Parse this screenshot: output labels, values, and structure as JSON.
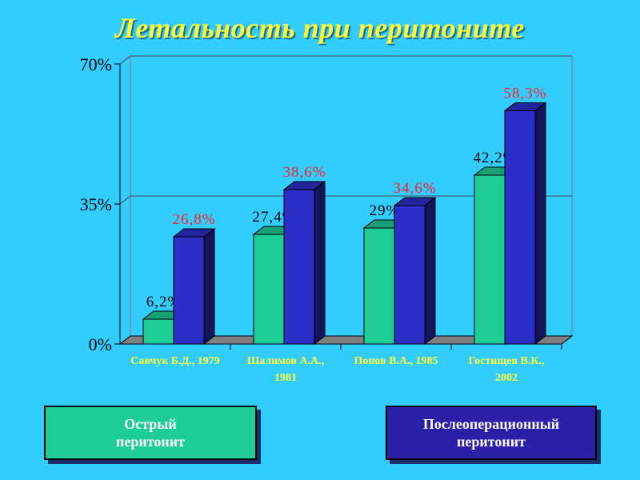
{
  "title": "Летальность при перитоните",
  "colors": {
    "background": "#33ccff",
    "title": "#ffff33",
    "acute": "#1ecc96",
    "postop": "#2b2fc8",
    "postop_label": "#ff2020",
    "axis_label": "#ffff33"
  },
  "legend": {
    "acute": "Острый\nперитонит",
    "postop": "Послеоперационный\nперитонит"
  },
  "chart_data": {
    "type": "bar",
    "categories": [
      "Савчук Б.Д., 1979",
      "Шалимов А.А., 1981",
      "Попов В.А., 1985",
      "Гостищев В.К., 2002"
    ],
    "category_lines": [
      [
        "Савчук Б.Д., 1979"
      ],
      [
        "Шалимов А.А.,",
        "1981"
      ],
      [
        "Попов В.А., 1985"
      ],
      [
        "Гостищев В.К.,",
        "2002"
      ]
    ],
    "series": [
      {
        "name": "Острый перитонит",
        "values": [
          6.2,
          27.4,
          29,
          42.2
        ],
        "labels": [
          "6,2%",
          "27,4%",
          "29%",
          "42,2%"
        ]
      },
      {
        "name": "Послеоперационный перитонит",
        "values": [
          26.8,
          38.6,
          34.6,
          58.3
        ],
        "labels": [
          "26,8%",
          "38,6%",
          "34,6%",
          "58,3%"
        ]
      }
    ],
    "yticks": [
      0,
      35,
      70
    ],
    "ytick_labels": [
      "0%",
      "35%",
      "70%"
    ],
    "ylim": [
      0,
      70
    ],
    "grid": true,
    "legend_position": "bottom",
    "three_d": true
  }
}
